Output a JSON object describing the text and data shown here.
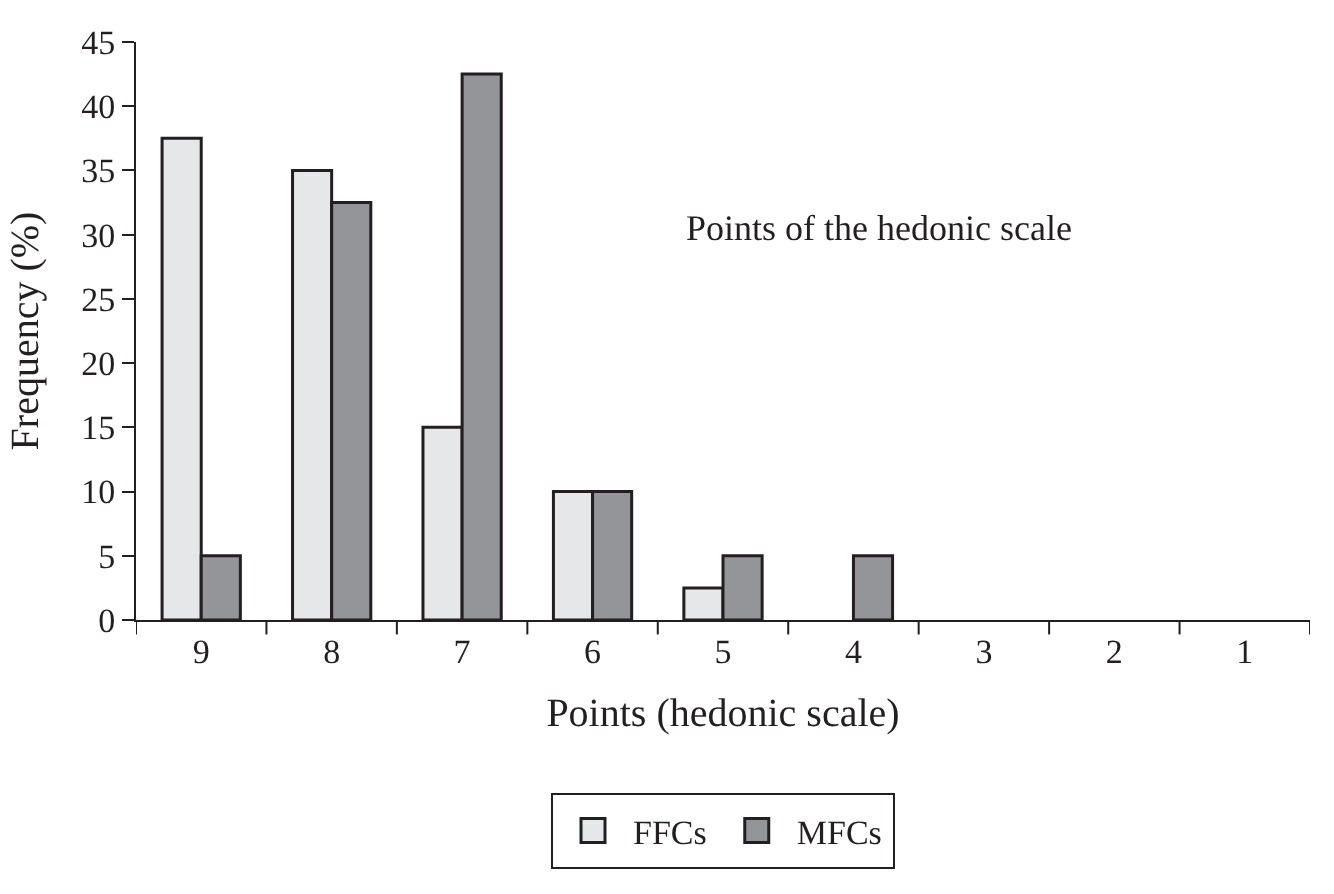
{
  "chart_data": {
    "type": "bar",
    "xlabel": "Points (hedonic scale)",
    "ylabel": "Frequency (%)",
    "annotations": [
      "Points of the hedonic scale"
    ],
    "categories": [
      "9",
      "8",
      "7",
      "6",
      "5",
      "4",
      "3",
      "2",
      "1"
    ],
    "series": [
      {
        "name": "FFCs",
        "color": "#e6e7e8",
        "values": [
          37.5,
          35,
          15,
          10,
          2.5,
          0,
          0,
          0,
          0
        ]
      },
      {
        "name": "MFCs",
        "color": "#939598",
        "values": [
          5,
          32.5,
          42.5,
          10,
          5,
          5,
          0,
          0,
          0
        ]
      }
    ],
    "ylim": [
      0,
      45
    ],
    "yticks": [
      0,
      5,
      10,
      15,
      20,
      25,
      30,
      35,
      40,
      45
    ],
    "legend": "bottom"
  }
}
